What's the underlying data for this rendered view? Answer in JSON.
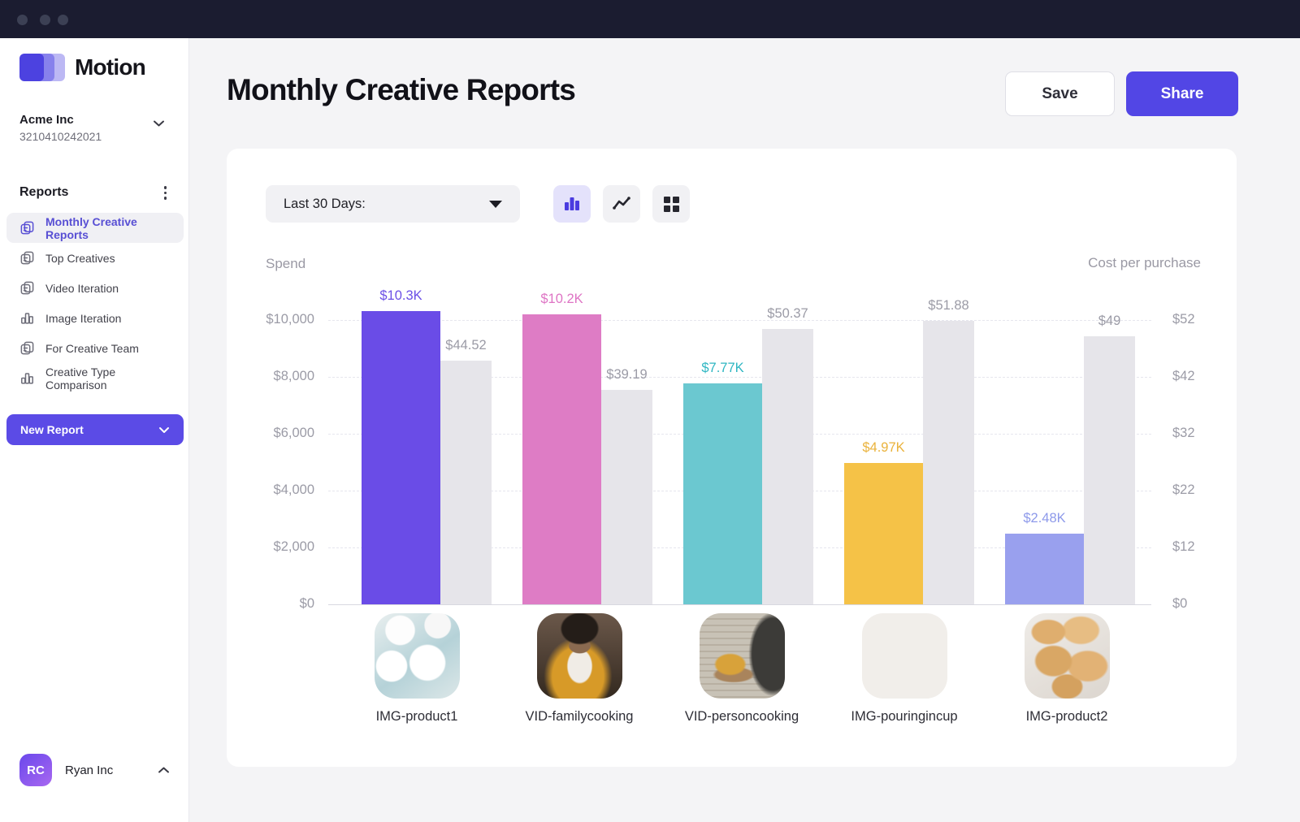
{
  "window": {
    "dots": 3
  },
  "sidebar": {
    "logo_text": "Motion",
    "org": {
      "name": "Acme Inc",
      "id": "3210410242021"
    },
    "section_title": "Reports",
    "items": [
      {
        "label": "Monthly Creative Reports",
        "icon": "report-icon",
        "active": true
      },
      {
        "label": "Top Creatives",
        "icon": "report-icon",
        "active": false
      },
      {
        "label": "Video Iteration",
        "icon": "report-icon",
        "active": false
      },
      {
        "label": "Image Iteration",
        "icon": "chart-icon",
        "active": false
      },
      {
        "label": "For Creative Team",
        "icon": "report-icon",
        "active": false
      },
      {
        "label": "Creative Type Comparison",
        "icon": "chart-icon",
        "active": false
      }
    ],
    "new_report_label": "New Report",
    "user": {
      "initials": "RC",
      "name": "Ryan Inc"
    }
  },
  "header": {
    "title": "Monthly Creative Reports",
    "save_label": "Save",
    "share_label": "Share"
  },
  "toolbar": {
    "range_label": "Last 30 Days:",
    "views": [
      {
        "icon": "bar-chart-icon",
        "active": true
      },
      {
        "icon": "line-chart-icon",
        "active": false
      },
      {
        "icon": "grid-icon",
        "active": false
      }
    ]
  },
  "chart_data": {
    "type": "bar",
    "dual_axis": true,
    "categories": [
      "IMG-product1",
      "VID-familycooking",
      "VID-personcooking",
      "IMG-pouringincup",
      "IMG-product2"
    ],
    "series": [
      {
        "name": "Spend",
        "axis": "left",
        "values": [
          10300,
          10200,
          7770,
          4970,
          2480
        ],
        "labels": [
          "$10.3K",
          "$10.2K",
          "$7.77K",
          "$4.97K",
          "$2.48K"
        ],
        "colors": [
          "#6a4ce7",
          "#de7cc5",
          "#6bc8d0",
          "#f5c247",
          "#99a0ee"
        ],
        "label_colors": [
          "#6b4fe6",
          "#de74c4",
          "#2eb6c2",
          "#eab23b",
          "#8d99ea"
        ]
      },
      {
        "name": "Cost per purchase",
        "axis": "right",
        "values": [
          44.52,
          39.19,
          50.37,
          51.88,
          49
        ],
        "labels": [
          "$44.52",
          "$39.19",
          "$50.37",
          "$51.88",
          "$49"
        ],
        "color": "#e6e5ea",
        "label_color": "#9b9ba6"
      }
    ],
    "left_axis": {
      "title": "Spend",
      "ticks": [
        "$10,000",
        "$8,000",
        "$6,000",
        "$4,000",
        "$2,000",
        "$0"
      ],
      "max": 10000
    },
    "right_axis": {
      "title": "Cost per purchase",
      "ticks": [
        "$52",
        "$42",
        "$32",
        "$22",
        "$12",
        "$0"
      ],
      "max": 52
    },
    "grid": "dashed-horizontal",
    "legend": "none"
  },
  "colors": {
    "accent": "#5246e5",
    "topbar": "#1b1c30",
    "gray_bar": "#e6e5ea",
    "card": "#ffffff"
  }
}
